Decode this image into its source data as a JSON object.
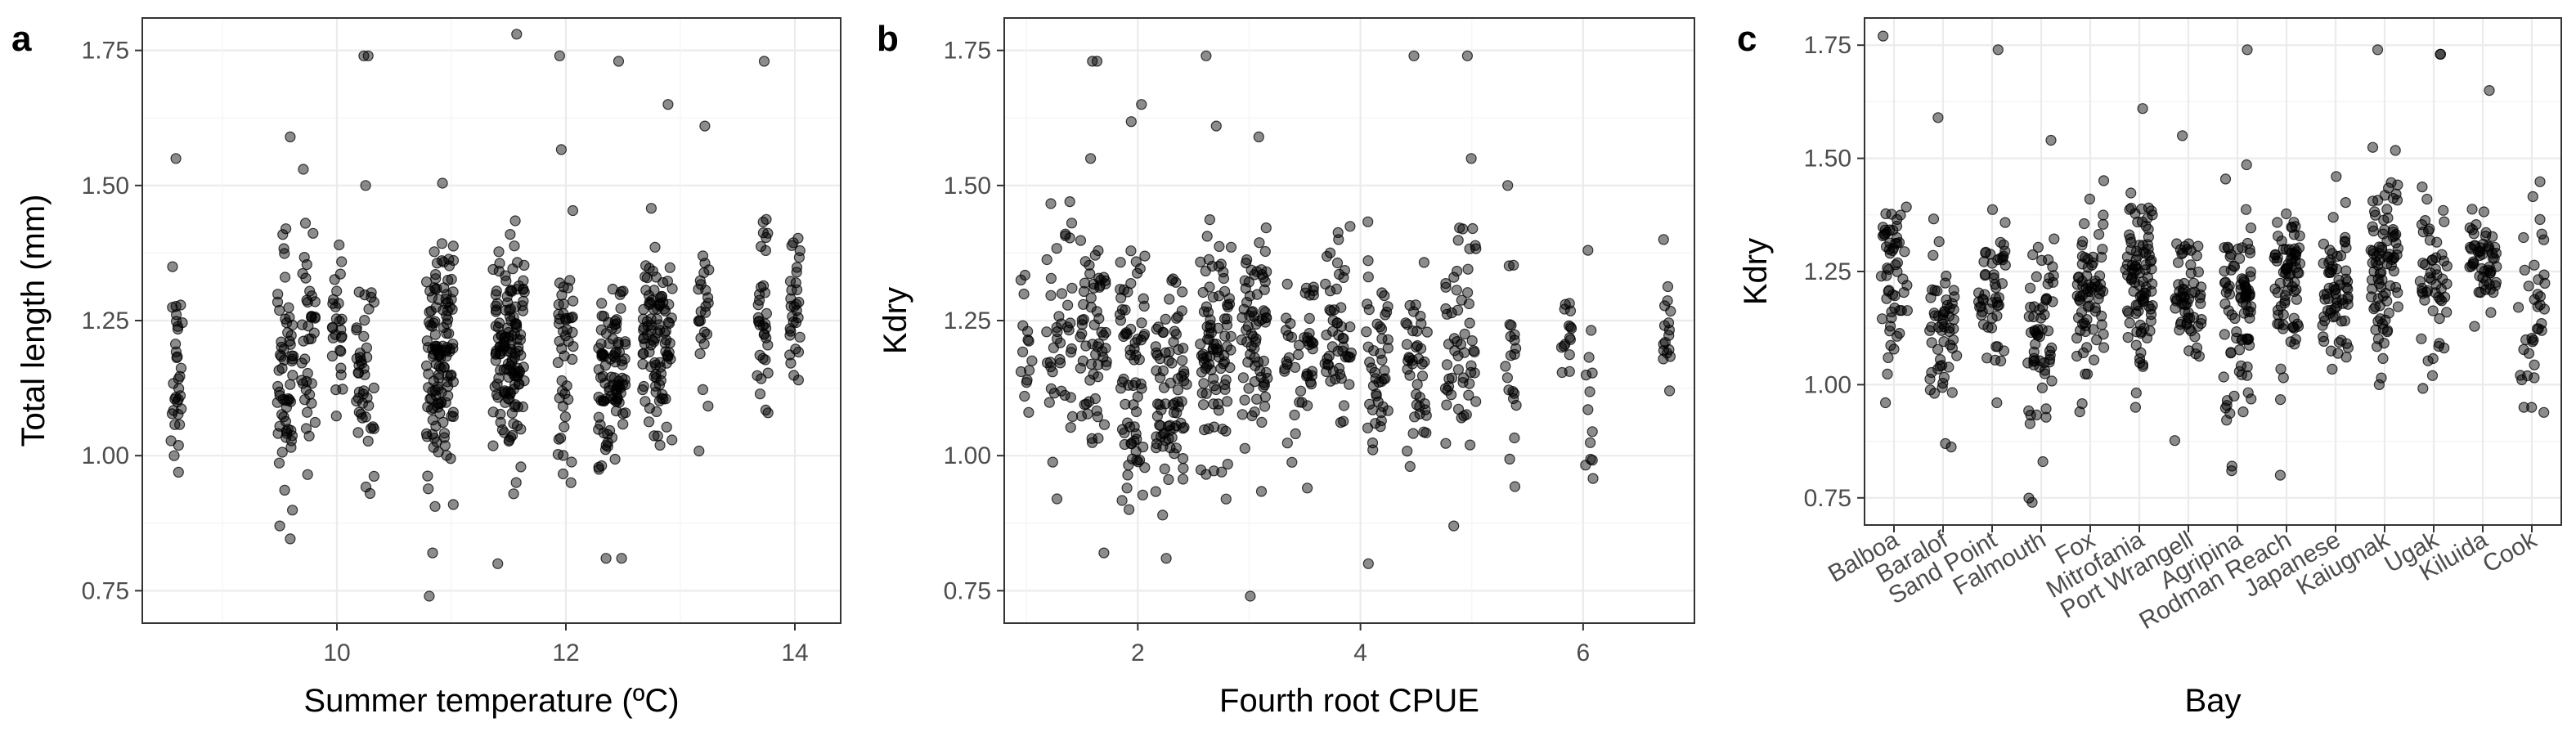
{
  "chart_data": [
    {
      "type": "scatter",
      "panel": "a",
      "xlabel": "Summer temperature (ºC)",
      "ylabel": "Total length (mm)",
      "xlim": [
        8.3,
        14.4
      ],
      "ylim": [
        0.69,
        1.81
      ],
      "xticks": [
        10,
        12,
        14
      ],
      "xtick_labels": [
        "10",
        "12",
        "14"
      ],
      "yticks": [
        0.75,
        1.0,
        1.25,
        1.5,
        1.75
      ],
      "ytick_labels": [
        "0.75",
        "1.00",
        "1.25",
        "1.50",
        "1.75"
      ],
      "grid": true,
      "legend": "none",
      "groups": [
        {
          "x": 8.6,
          "spread": 0.05,
          "n": 32,
          "mean": 1.16,
          "sd": 0.08,
          "outliers": [
            1.55,
            1.0
          ]
        },
        {
          "x": 9.55,
          "spread": 0.07,
          "n": 60,
          "mean": 1.13,
          "sd": 0.13,
          "outliers": [
            0.87,
            1.59
          ]
        },
        {
          "x": 9.75,
          "spread": 0.06,
          "n": 38,
          "mean": 1.21,
          "sd": 0.11,
          "outliers": [
            1.53
          ]
        },
        {
          "x": 10.0,
          "spread": 0.05,
          "n": 26,
          "mean": 1.22,
          "sd": 0.07,
          "outliers": [
            1.39
          ]
        },
        {
          "x": 10.25,
          "spread": 0.08,
          "n": 42,
          "mean": 1.18,
          "sd": 0.09,
          "outliers": [
            1.74,
            1.74,
            1.5,
            0.93
          ]
        },
        {
          "x": 10.9,
          "spread": 0.12,
          "n": 130,
          "mean": 1.18,
          "sd": 0.12,
          "outliers": [
            0.82,
            0.74
          ]
        },
        {
          "x": 11.5,
          "spread": 0.14,
          "n": 140,
          "mean": 1.19,
          "sd": 0.1,
          "outliers": [
            1.78,
            0.8
          ]
        },
        {
          "x": 12.0,
          "spread": 0.07,
          "n": 45,
          "mean": 1.23,
          "sd": 0.12,
          "outliers": [
            1.74,
            0.95
          ]
        },
        {
          "x": 12.4,
          "spread": 0.12,
          "n": 95,
          "mean": 1.14,
          "sd": 0.09,
          "outliers": [
            1.73,
            0.81,
            0.81
          ]
        },
        {
          "x": 12.8,
          "spread": 0.13,
          "n": 100,
          "mean": 1.23,
          "sd": 0.09,
          "outliers": [
            1.65
          ]
        },
        {
          "x": 13.2,
          "spread": 0.05,
          "n": 24,
          "mean": 1.27,
          "sd": 0.09,
          "outliers": [
            1.61
          ]
        },
        {
          "x": 13.72,
          "spread": 0.05,
          "n": 34,
          "mean": 1.27,
          "sd": 0.1,
          "outliers": [
            1.73
          ]
        },
        {
          "x": 14.0,
          "spread": 0.05,
          "n": 30,
          "mean": 1.26,
          "sd": 0.07,
          "outliers": [
            1.14
          ]
        }
      ]
    },
    {
      "type": "scatter",
      "panel": "b",
      "xlabel": "Fourth root CPUE",
      "ylabel": "Kdry",
      "xlim": [
        0.8,
        7.0
      ],
      "ylim": [
        0.69,
        1.81
      ],
      "xticks": [
        2,
        4,
        6
      ],
      "xtick_labels": [
        "2",
        "4",
        "6"
      ],
      "yticks": [
        0.75,
        1.0,
        1.25,
        1.5,
        1.75
      ],
      "ytick_labels": [
        "0.75",
        "1.00",
        "1.25",
        "1.50",
        "1.75"
      ],
      "grid": true,
      "legend": "none",
      "groups": [
        {
          "x": 1.0,
          "spread": 0.06,
          "n": 14,
          "mean": 1.22,
          "sd": 0.08,
          "outliers": [
            1.11
          ]
        },
        {
          "x": 1.3,
          "spread": 0.12,
          "n": 40,
          "mean": 1.25,
          "sd": 0.1,
          "outliers": [
            1.47,
            0.92
          ]
        },
        {
          "x": 1.6,
          "spread": 0.12,
          "n": 60,
          "mean": 1.22,
          "sd": 0.12,
          "outliers": [
            1.73,
            1.73,
            0.82,
            1.55
          ]
        },
        {
          "x": 1.95,
          "spread": 0.12,
          "n": 70,
          "mean": 1.19,
          "sd": 0.11,
          "outliers": [
            1.65,
            0.94
          ]
        },
        {
          "x": 2.3,
          "spread": 0.14,
          "n": 80,
          "mean": 1.15,
          "sd": 0.1,
          "outliers": [
            0.81,
            0.89
          ]
        },
        {
          "x": 2.7,
          "spread": 0.14,
          "n": 90,
          "mean": 1.2,
          "sd": 0.1,
          "outliers": [
            1.74,
            1.61
          ]
        },
        {
          "x": 3.05,
          "spread": 0.12,
          "n": 70,
          "mean": 1.21,
          "sd": 0.1,
          "outliers": [
            1.59,
            0.74
          ]
        },
        {
          "x": 3.45,
          "spread": 0.14,
          "n": 45,
          "mean": 1.19,
          "sd": 0.08,
          "outliers": [
            0.94
          ]
        },
        {
          "x": 3.8,
          "spread": 0.12,
          "n": 50,
          "mean": 1.21,
          "sd": 0.08,
          "outliers": [
            1.4
          ]
        },
        {
          "x": 4.15,
          "spread": 0.1,
          "n": 45,
          "mean": 1.17,
          "sd": 0.09,
          "outliers": [
            0.8
          ]
        },
        {
          "x": 4.5,
          "spread": 0.1,
          "n": 40,
          "mean": 1.17,
          "sd": 0.09,
          "outliers": [
            1.74,
            0.98
          ]
        },
        {
          "x": 4.9,
          "spread": 0.14,
          "n": 55,
          "mean": 1.22,
          "sd": 0.09,
          "outliers": [
            1.74,
            1.55,
            0.87
          ]
        },
        {
          "x": 5.35,
          "spread": 0.05,
          "n": 20,
          "mean": 1.17,
          "sd": 0.1,
          "outliers": [
            1.5
          ]
        },
        {
          "x": 5.85,
          "spread": 0.05,
          "n": 14,
          "mean": 1.22,
          "sd": 0.06,
          "outliers": [
            1.28
          ]
        },
        {
          "x": 6.05,
          "spread": 0.04,
          "n": 12,
          "mean": 1.05,
          "sd": 0.1,
          "outliers": [
            1.38
          ]
        },
        {
          "x": 6.75,
          "spread": 0.04,
          "n": 16,
          "mean": 1.25,
          "sd": 0.08,
          "outliers": [
            1.4
          ]
        }
      ]
    },
    {
      "type": "scatter",
      "panel": "c",
      "xlabel": "Bay",
      "ylabel": "Kdry",
      "categories": [
        "Balboa",
        "Baralof",
        "Sand Point",
        "Falmouth",
        "Fox",
        "Mitrofania",
        "Port Wrangell",
        "Agripina",
        "Rodman Reach",
        "Japanese",
        "Kaiugnak",
        "Ugak",
        "Kiluida",
        "Cook"
      ],
      "ylim": [
        0.69,
        1.81
      ],
      "yticks": [
        0.75,
        1.0,
        1.25,
        1.5,
        1.75
      ],
      "ytick_labels": [
        "0.75",
        "1.00",
        "1.25",
        "1.50",
        "1.75"
      ],
      "grid": true,
      "legend": "none",
      "groups": [
        {
          "n": 55,
          "mean": 1.24,
          "sd": 0.09,
          "outliers": [
            1.77,
            0.96
          ]
        },
        {
          "n": 55,
          "mean": 1.14,
          "sd": 0.1,
          "outliers": [
            1.59,
            0.87
          ]
        },
        {
          "n": 50,
          "mean": 1.2,
          "sd": 0.08,
          "outliers": [
            1.74,
            0.96
          ]
        },
        {
          "n": 60,
          "mean": 1.13,
          "sd": 0.11,
          "outliers": [
            1.54,
            0.74,
            0.83
          ]
        },
        {
          "n": 70,
          "mean": 1.2,
          "sd": 0.08,
          "outliers": [
            1.41,
            0.94
          ]
        },
        {
          "n": 90,
          "mean": 1.23,
          "sd": 0.09,
          "outliers": [
            1.61,
            0.95
          ]
        },
        {
          "n": 60,
          "mean": 1.19,
          "sd": 0.08,
          "outliers": [
            1.55
          ]
        },
        {
          "n": 85,
          "mean": 1.18,
          "sd": 0.1,
          "outliers": [
            1.74,
            0.81,
            0.82
          ]
        },
        {
          "n": 75,
          "mean": 1.22,
          "sd": 0.09,
          "outliers": [
            0.8
          ]
        },
        {
          "n": 65,
          "mean": 1.19,
          "sd": 0.08,
          "outliers": [
            1.46
          ]
        },
        {
          "n": 85,
          "mean": 1.26,
          "sd": 0.11,
          "outliers": [
            1.74,
            1.0
          ]
        },
        {
          "n": 50,
          "mean": 1.25,
          "sd": 0.11,
          "outliers": [
            1.73,
            1.73,
            1.02
          ]
        },
        {
          "n": 55,
          "mean": 1.27,
          "sd": 0.06,
          "outliers": [
            1.65
          ]
        },
        {
          "n": 35,
          "mean": 1.19,
          "sd": 0.11,
          "outliers": [
            0.95,
            0.95
          ]
        }
      ]
    }
  ]
}
